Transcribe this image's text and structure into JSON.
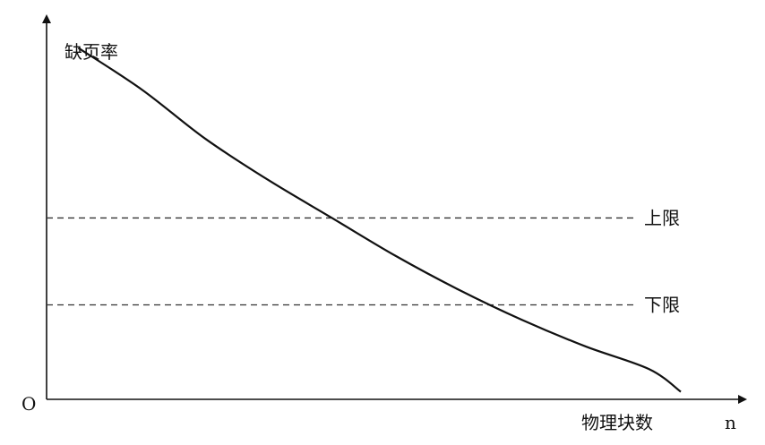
{
  "chart_data": {
    "type": "line",
    "ylabel": "缺页率",
    "xlabel": "物理块数",
    "x_axis_symbol": "n",
    "origin_label": "O",
    "series": [
      {
        "x": [
          0.05,
          0.15,
          0.25,
          0.35,
          0.45,
          0.55,
          0.65,
          0.75,
          0.85,
          0.95,
          1.0
        ],
        "values": [
          0.93,
          0.82,
          0.69,
          0.58,
          0.48,
          0.38,
          0.29,
          0.21,
          0.14,
          0.08,
          0.02
        ]
      }
    ],
    "reference_lines": [
      {
        "label": "上限",
        "y": 0.48
      },
      {
        "label": "下限",
        "y": 0.25
      }
    ],
    "xlim": [
      0,
      1.0
    ],
    "ylim": [
      0,
      1.0
    ],
    "grid": false,
    "colors": {
      "axis": "#111111",
      "curve": "#111111",
      "reference": "#333333"
    }
  }
}
